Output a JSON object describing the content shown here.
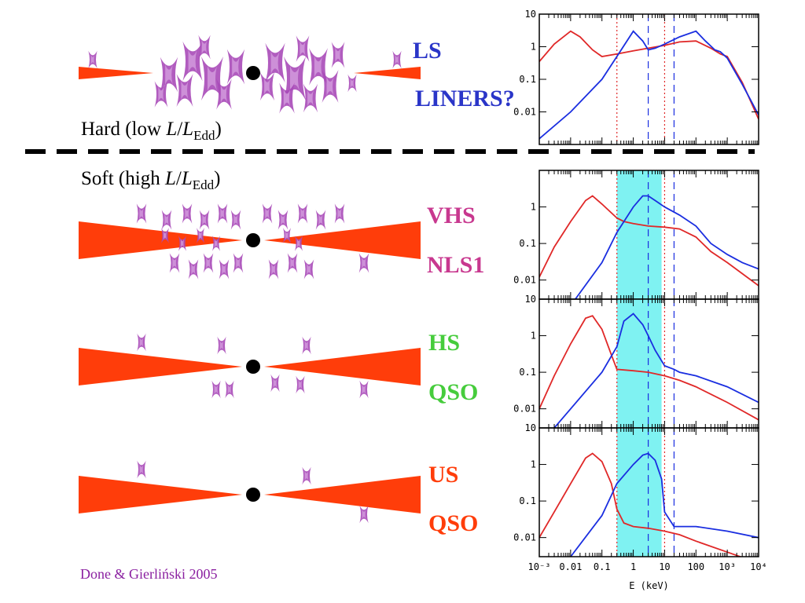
{
  "colors": {
    "disc": "#ff3d0a",
    "corona": "#a84ab8",
    "blue_text": "#2a35c8",
    "magenta_text": "#c8388f",
    "green_text": "#46cc3c",
    "orange_text": "#ff3d0a",
    "spec_red": "#e02828",
    "spec_blue": "#1a2ee0",
    "spec_grey": "#8a7a80",
    "band": "#7ff2f2",
    "credit": "#8a1fa0"
  },
  "states": {
    "hard": {
      "pre": "Hard (low ",
      "l1": "L",
      "slash": "/",
      "l2": "L",
      "sub": "Edd",
      "post": ")"
    },
    "soft": {
      "pre": "Soft (high ",
      "l1": "L",
      "slash": "/",
      "l2": "L",
      "sub": "Edd",
      "post": ")"
    }
  },
  "labels": {
    "ls": "LS",
    "liners": "LINERS?",
    "vhs": "VHS",
    "nls1": "NLS1",
    "hs": "HS",
    "qso1": "QSO",
    "us": "US",
    "qso2": "QSO"
  },
  "credit": "Done & Gierliński 2005",
  "axis": {
    "xlabel": "E (keV)",
    "xticks": [
      "10⁻³",
      "0.01",
      "0.1",
      "1",
      "10",
      "100",
      "10³",
      "10⁴"
    ],
    "yticks_top": [
      "10",
      "1",
      "0.1",
      "0.01"
    ],
    "yticks_mid": [
      "1",
      "0.1",
      "0.01"
    ],
    "yticks_low1": [
      "10",
      "1",
      "0.1",
      "0.01"
    ],
    "yticks_low2": [
      "10",
      "1",
      "0.1",
      "0.01"
    ]
  },
  "chart_data": {
    "type": "line",
    "xlabel": "E (keV)",
    "x_scale": "log",
    "xlim": [
      0.001,
      10000
    ],
    "y_scale": "log",
    "panels": [
      {
        "name": "LS",
        "ylim": [
          0.001,
          10
        ],
        "band": null,
        "vlines_red": [
          0.3,
          10
        ],
        "vlines_blue": [
          3,
          20
        ],
        "series": [
          {
            "color": "red",
            "x": [
              0.001,
              0.003,
              0.01,
              0.02,
              0.05,
              0.1,
              0.3,
              1,
              3,
              10,
              30,
              100,
              300,
              600,
              1000,
              3000,
              10000
            ],
            "y": [
              0.35,
              1.2,
              3.0,
              2.0,
              0.8,
              0.5,
              0.6,
              0.75,
              0.9,
              1.1,
              1.4,
              1.5,
              0.9,
              0.6,
              0.5,
              0.08,
              0.006
            ]
          },
          {
            "color": "blue",
            "x": [
              0.001,
              0.01,
              0.1,
              0.3,
              1,
              2,
              3,
              5,
              10,
              30,
              100,
              200,
              400,
              600,
              1000,
              3000,
              10000
            ],
            "y": [
              0.0015,
              0.01,
              0.1,
              0.5,
              3.0,
              1.5,
              0.8,
              0.9,
              1.2,
              2.0,
              3.0,
              1.5,
              0.8,
              0.7,
              0.45,
              0.07,
              0.008
            ]
          }
        ]
      },
      {
        "name": "VHS",
        "ylim": [
          0.003,
          10
        ],
        "band": [
          0.3,
          8
        ],
        "vlines_red": [
          0.3,
          10
        ],
        "vlines_blue": [
          3,
          20
        ],
        "series": [
          {
            "color": "red",
            "x": [
              0.001,
              0.003,
              0.01,
              0.03,
              0.05,
              0.1,
              0.3,
              0.5,
              1,
              3,
              10,
              30,
              100,
              300,
              1000,
              3000,
              10000
            ],
            "y": [
              0.012,
              0.08,
              0.4,
              1.5,
              2.0,
              1.2,
              0.5,
              0.4,
              0.35,
              0.3,
              0.28,
              0.25,
              0.15,
              0.06,
              0.03,
              0.015,
              0.007
            ]
          },
          {
            "color": "blue",
            "x": [
              0.001,
              0.01,
              0.1,
              0.3,
              1,
              2,
              3,
              5,
              10,
              30,
              100,
              300,
              1000,
              3000,
              10000
            ],
            "y": [
              0.0002,
              0.002,
              0.03,
              0.2,
              1.0,
              2.0,
              2.0,
              1.5,
              1.0,
              0.6,
              0.3,
              0.1,
              0.05,
              0.03,
              0.02
            ]
          }
        ]
      },
      {
        "name": "HS",
        "ylim": [
          0.003,
          10
        ],
        "band": [
          0.3,
          8
        ],
        "vlines_red": [
          0.3,
          10
        ],
        "vlines_blue": [
          3,
          20
        ],
        "series": [
          {
            "color": "red",
            "x": [
              0.001,
              0.003,
              0.01,
              0.03,
              0.05,
              0.1,
              0.2,
              0.3,
              1,
              3,
              10,
              30,
              100,
              1000,
              10000
            ],
            "y": [
              0.01,
              0.08,
              0.6,
              3.0,
              3.5,
              1.5,
              0.3,
              0.12,
              0.11,
              0.1,
              0.08,
              0.06,
              0.04,
              0.015,
              0.005
            ]
          },
          {
            "color": "blue",
            "x": [
              0.001,
              0.01,
              0.1,
              0.3,
              0.5,
              1,
              2,
              3,
              5,
              10,
              20,
              30,
              100,
              1000,
              10000
            ],
            "y": [
              0.001,
              0.01,
              0.1,
              0.5,
              2.5,
              4.0,
              2.0,
              1.0,
              0.4,
              0.15,
              0.12,
              0.1,
              0.08,
              0.04,
              0.015
            ]
          }
        ]
      },
      {
        "name": "US",
        "ylim": [
          0.003,
          10
        ],
        "band": [
          0.3,
          8
        ],
        "vlines_red": [
          0.3,
          10
        ],
        "vlines_blue": [
          3,
          20
        ],
        "series": [
          {
            "color": "red",
            "x": [
              0.001,
              0.003,
              0.01,
              0.03,
              0.05,
              0.1,
              0.2,
              0.3,
              0.5,
              1,
              3,
              10,
              30,
              100,
              1000,
              10000
            ],
            "y": [
              0.01,
              0.05,
              0.3,
              1.5,
              2.0,
              1.2,
              0.3,
              0.06,
              0.025,
              0.02,
              0.018,
              0.015,
              0.012,
              0.008,
              0.004,
              0.002
            ]
          },
          {
            "color": "blue",
            "x": [
              0.001,
              0.01,
              0.1,
              0.3,
              1,
              2,
              3,
              5,
              8,
              10,
              20,
              100,
              1000,
              10000
            ],
            "y": [
              0.0004,
              0.003,
              0.04,
              0.3,
              1.0,
              1.8,
              2.0,
              1.3,
              0.4,
              0.05,
              0.02,
              0.02,
              0.015,
              0.01
            ]
          }
        ]
      }
    ]
  }
}
